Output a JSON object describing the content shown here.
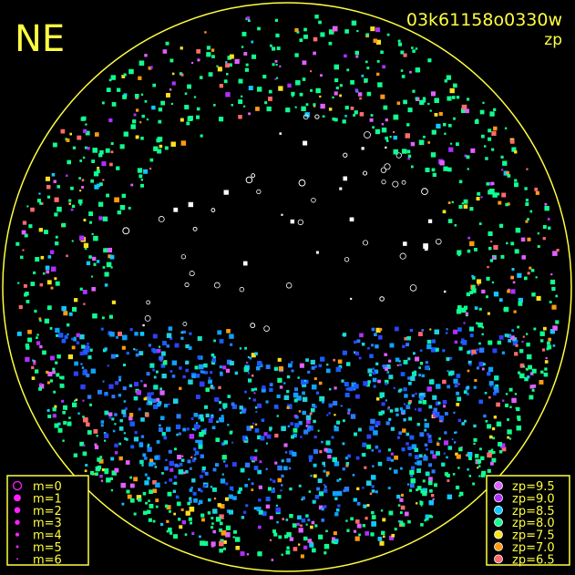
{
  "title": "NE",
  "frame": "03k61158o0330w",
  "scale_label": "zp",
  "magnitude_legend": [
    "m=0",
    "m=1",
    "m=2",
    "m=3",
    "m=4",
    "m=5",
    "m=6"
  ],
  "zp_legend": [
    {
      "label": "zp=9.5",
      "color": "#e060ff"
    },
    {
      "label": "zp=9.0",
      "color": "#b030ff"
    },
    {
      "label": "zp=8.5",
      "color": "#10c8ff"
    },
    {
      "label": "zp=8.0",
      "color": "#10ff90"
    },
    {
      "label": "zp=7.5",
      "color": "#ffe020"
    },
    {
      "label": "zp=7.0",
      "color": "#ff9a10"
    },
    {
      "label": "zp=6.5",
      "color": "#ff6a6a"
    }
  ]
}
